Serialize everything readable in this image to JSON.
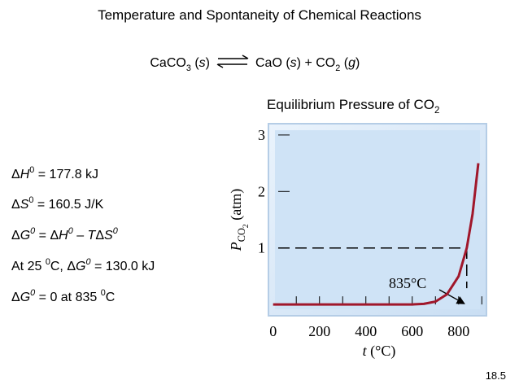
{
  "title": "Temperature and Spontaneity of Chemical Reactions",
  "equation": {
    "left": [
      {
        "text": "CaCO"
      },
      {
        "text": "3",
        "style": "sub"
      },
      {
        "text": " ("
      },
      {
        "text": "s",
        "style": "i"
      },
      {
        "text": ")"
      }
    ],
    "right": [
      {
        "text": "CaO ("
      },
      {
        "text": "s",
        "style": "i"
      },
      {
        "text": ") + CO"
      },
      {
        "text": "2",
        "style": "sub"
      },
      {
        "text": " ("
      },
      {
        "text": "g",
        "style": "i"
      },
      {
        "text": ")"
      }
    ]
  },
  "facts": [
    [
      {
        "text": "Δ"
      },
      {
        "text": "H",
        "style": "i"
      },
      {
        "text": "0",
        "style": "sup"
      },
      {
        "text": " = 177.8 kJ"
      }
    ],
    [
      {
        "text": "Δ"
      },
      {
        "text": "S",
        "style": "i"
      },
      {
        "text": "0",
        "style": "sup"
      },
      {
        "text": " = 160.5 J/K"
      }
    ],
    [
      {
        "text": "Δ"
      },
      {
        "text": "G",
        "style": "i"
      },
      {
        "text": "0",
        "style": "isup"
      },
      {
        "text": " = Δ"
      },
      {
        "text": "H",
        "style": "i"
      },
      {
        "text": "0",
        "style": "isup"
      },
      {
        "text": " – "
      },
      {
        "text": "T",
        "style": "i"
      },
      {
        "text": "Δ"
      },
      {
        "text": "S",
        "style": "i"
      },
      {
        "text": "0",
        "style": "isup"
      }
    ],
    [
      {
        "text": "At 25 "
      },
      {
        "text": "0",
        "style": "sup"
      },
      {
        "text": "C, Δ"
      },
      {
        "text": "G",
        "style": "i"
      },
      {
        "text": "0",
        "style": "isup"
      },
      {
        "text": " = 130.0 kJ"
      }
    ],
    [
      {
        "text": "Δ"
      },
      {
        "text": "G",
        "style": "i"
      },
      {
        "text": "0",
        "style": "isup"
      },
      {
        "text": " = 0 at 835 "
      },
      {
        "text": "0",
        "style": "sup"
      },
      {
        "text": "C"
      }
    ]
  ],
  "page_number": "18.5",
  "chart_data": {
    "type": "line",
    "title": [
      {
        "text": "Equilibrium Pressure of CO"
      },
      {
        "text": "2",
        "style": "sub"
      }
    ],
    "xlabel": [
      {
        "text": "t",
        "style": "i"
      },
      {
        "text": " (°C)"
      }
    ],
    "ylabel": [
      {
        "text": "P",
        "style": "i"
      },
      {
        "text": "CO",
        "style": "sub"
      },
      {
        "text": "2",
        "style": "sub2"
      },
      {
        "text": " (atm)"
      }
    ],
    "x": [
      0,
      100,
      200,
      300,
      400,
      500,
      600,
      650,
      700,
      750,
      800,
      835,
      860,
      885
    ],
    "values": [
      0,
      0,
      0,
      0,
      0,
      0,
      0,
      0.01,
      0.05,
      0.18,
      0.5,
      1.0,
      1.6,
      2.5
    ],
    "color": "#a0172b",
    "xlim": [
      -20,
      920
    ],
    "ylim": [
      -0.2,
      3.2
    ],
    "xticks": [
      0,
      200,
      400,
      600,
      800
    ],
    "xminorticks": [
      100,
      200,
      300,
      400,
      500,
      600,
      700,
      800,
      900
    ],
    "yticks": [
      1,
      2,
      3
    ],
    "reference": {
      "x": 835,
      "y": 1,
      "label": "835°C"
    }
  }
}
